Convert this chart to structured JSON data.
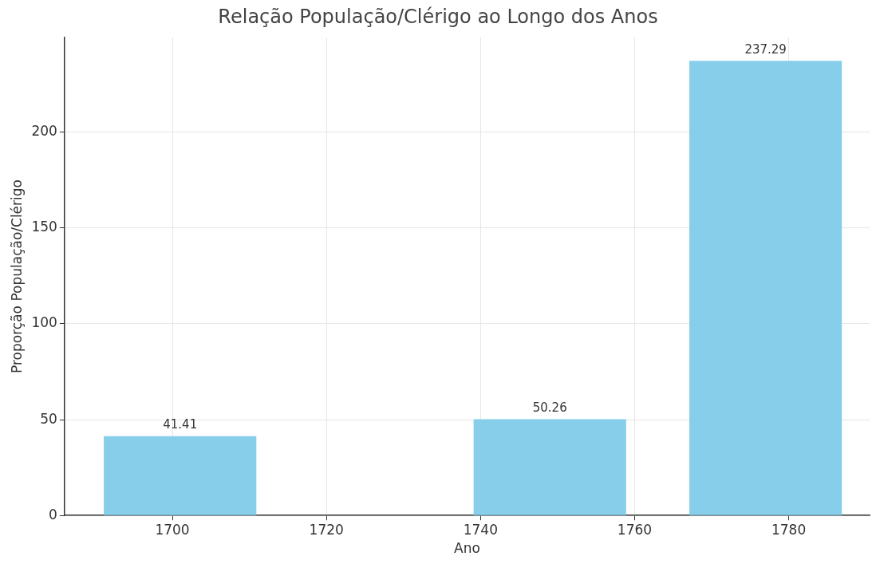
{
  "chart_data": {
    "type": "bar",
    "title": "Relação População/Clérigo ao Longo dos Anos",
    "xlabel": "Ano",
    "ylabel": "Proporção População/Clérigo",
    "x": [
      1701,
      1749,
      1777
    ],
    "values": [
      41.41,
      50.26,
      237.29
    ],
    "color": "#87ceeb",
    "xlim": [
      1686,
      1790.5
    ],
    "xticks": [
      1700,
      1720,
      1740,
      1760,
      1780
    ],
    "ylim": [
      0,
      249.5
    ],
    "yticks": [
      0,
      50,
      100,
      150,
      200
    ],
    "grid": true,
    "data_labels": true,
    "legend": false
  }
}
